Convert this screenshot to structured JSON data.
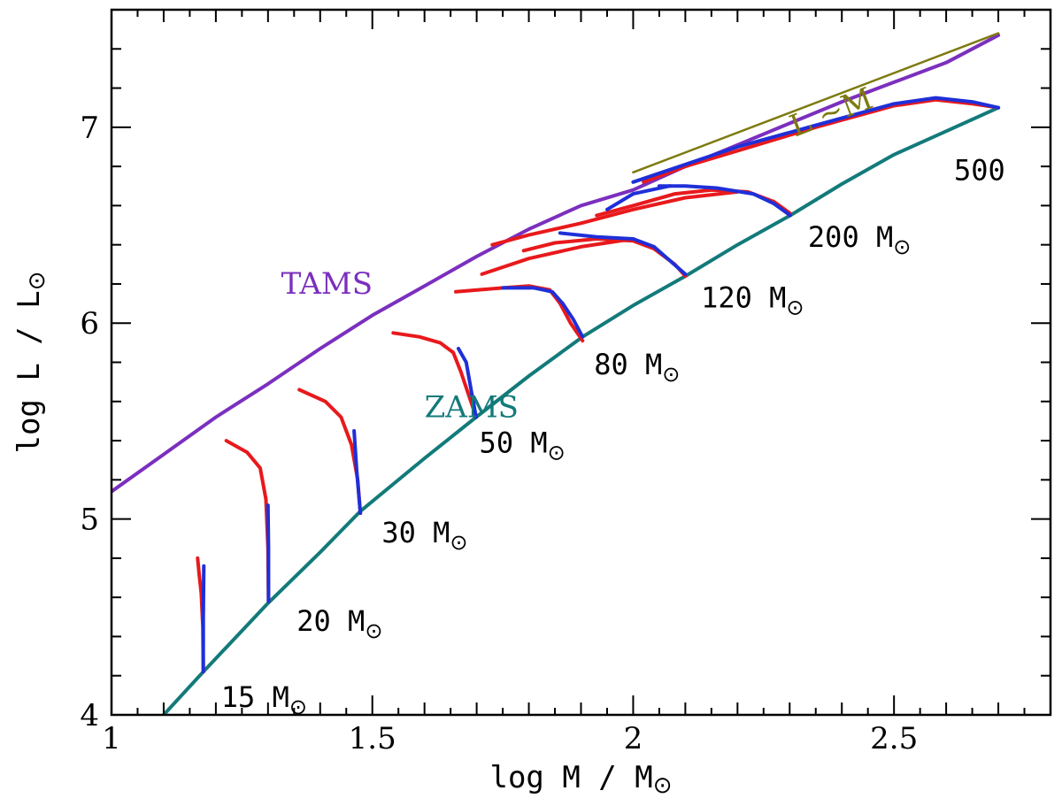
{
  "chart_data": {
    "type": "line",
    "title": "",
    "xlabel": {
      "text": "log M / M",
      "sym": "⊙"
    },
    "ylabel": {
      "text": "log L / L",
      "sym": "⊙"
    },
    "xlim": [
      1.0,
      2.8
    ],
    "ylim": [
      4.0,
      7.6
    ],
    "xticks": [
      {
        "value": 1,
        "label": "1"
      },
      {
        "value": 1.5,
        "label": "1.5"
      },
      {
        "value": 2,
        "label": "2"
      },
      {
        "value": 2.5,
        "label": "2.5"
      }
    ],
    "yticks": [
      {
        "value": 4,
        "label": "4"
      },
      {
        "value": 5,
        "label": "5"
      },
      {
        "value": 6,
        "label": "6"
      },
      {
        "value": 7,
        "label": "7"
      }
    ],
    "colors": {
      "TAMS": "#7b2fbe",
      "ZAMS": "#137a7a",
      "LM": "#7d7a10",
      "red": "#e8191c",
      "blue": "#1f2fd8"
    },
    "series": [
      {
        "name": "TAMS",
        "color": "TAMS",
        "points": [
          [
            1.0,
            5.14
          ],
          [
            1.1,
            5.33
          ],
          [
            1.2,
            5.52
          ],
          [
            1.3,
            5.69
          ],
          [
            1.4,
            5.87
          ],
          [
            1.5,
            6.04
          ],
          [
            1.6,
            6.19
          ],
          [
            1.7,
            6.34
          ],
          [
            1.8,
            6.48
          ],
          [
            1.9,
            6.6
          ],
          [
            2.0,
            6.68
          ],
          [
            2.1,
            6.8
          ],
          [
            2.2,
            6.91
          ],
          [
            2.3,
            7.02
          ],
          [
            2.4,
            7.13
          ],
          [
            2.5,
            7.23
          ],
          [
            2.6,
            7.33
          ],
          [
            2.7,
            7.47
          ]
        ]
      },
      {
        "name": "ZAMS",
        "color": "ZAMS",
        "points": [
          [
            1.1,
            4.0
          ],
          [
            1.176,
            4.22
          ],
          [
            1.3,
            4.57
          ],
          [
            1.4,
            4.83
          ],
          [
            1.477,
            5.04
          ],
          [
            1.6,
            5.31
          ],
          [
            1.699,
            5.52
          ],
          [
            1.8,
            5.73
          ],
          [
            1.903,
            5.93
          ],
          [
            2.0,
            6.09
          ],
          [
            2.1,
            6.24
          ],
          [
            2.2,
            6.4
          ],
          [
            2.301,
            6.55
          ],
          [
            2.4,
            6.71
          ],
          [
            2.5,
            6.86
          ],
          [
            2.6,
            6.98
          ],
          [
            2.7,
            7.1
          ]
        ]
      },
      {
        "name": "L ~M",
        "color": "LM",
        "points": [
          [
            2.0,
            6.77
          ],
          [
            2.7,
            7.48
          ]
        ]
      },
      {
        "name": "15 red",
        "color": "red",
        "points": [
          [
            1.176,
            4.22
          ],
          [
            1.175,
            4.45
          ],
          [
            1.172,
            4.62
          ],
          [
            1.168,
            4.72
          ],
          [
            1.165,
            4.8
          ]
        ]
      },
      {
        "name": "15 blue",
        "color": "blue",
        "points": [
          [
            1.176,
            4.22
          ],
          [
            1.176,
            4.5
          ],
          [
            1.177,
            4.76
          ]
        ]
      },
      {
        "name": "20 red",
        "color": "red",
        "points": [
          [
            1.301,
            4.58
          ],
          [
            1.3,
            4.85
          ],
          [
            1.296,
            5.1
          ],
          [
            1.285,
            5.26
          ],
          [
            1.26,
            5.34
          ],
          [
            1.22,
            5.4
          ]
        ]
      },
      {
        "name": "20 blue",
        "color": "blue",
        "points": [
          [
            1.301,
            4.58
          ],
          [
            1.301,
            4.85
          ],
          [
            1.3,
            5.07
          ]
        ]
      },
      {
        "name": "30 red",
        "color": "red",
        "points": [
          [
            1.477,
            5.03
          ],
          [
            1.472,
            5.2
          ],
          [
            1.46,
            5.38
          ],
          [
            1.44,
            5.52
          ],
          [
            1.41,
            5.6
          ],
          [
            1.36,
            5.66
          ]
        ]
      },
      {
        "name": "30 blue",
        "color": "blue",
        "points": [
          [
            1.477,
            5.03
          ],
          [
            1.47,
            5.25
          ],
          [
            1.465,
            5.45
          ]
        ]
      },
      {
        "name": "50 red",
        "color": "red",
        "points": [
          [
            1.699,
            5.52
          ],
          [
            1.685,
            5.63
          ],
          [
            1.67,
            5.75
          ],
          [
            1.655,
            5.85
          ],
          [
            1.63,
            5.9
          ],
          [
            1.59,
            5.93
          ],
          [
            1.54,
            5.95
          ]
        ]
      },
      {
        "name": "50 blue",
        "color": "blue",
        "points": [
          [
            1.699,
            5.52
          ],
          [
            1.69,
            5.65
          ],
          [
            1.68,
            5.8
          ],
          [
            1.665,
            5.87
          ]
        ]
      },
      {
        "name": "80 red",
        "color": "red",
        "points": [
          [
            1.903,
            5.91
          ],
          [
            1.88,
            6.0
          ],
          [
            1.86,
            6.1
          ],
          [
            1.84,
            6.17
          ],
          [
            1.8,
            6.19
          ],
          [
            1.75,
            6.18
          ],
          [
            1.66,
            6.16
          ]
        ]
      },
      {
        "name": "80 blue",
        "color": "blue",
        "points": [
          [
            1.903,
            5.93
          ],
          [
            1.885,
            6.02
          ],
          [
            1.865,
            6.1
          ],
          [
            1.845,
            6.16
          ],
          [
            1.81,
            6.18
          ],
          [
            1.75,
            6.18
          ]
        ]
      },
      {
        "name": "120 red a",
        "color": "red",
        "points": [
          [
            2.1,
            6.24
          ],
          [
            2.08,
            6.3
          ],
          [
            2.04,
            6.38
          ],
          [
            2.0,
            6.42
          ],
          [
            1.93,
            6.43
          ],
          [
            1.85,
            6.41
          ],
          [
            1.79,
            6.37
          ]
        ]
      },
      {
        "name": "120 red b",
        "color": "red",
        "points": [
          [
            2.0,
            6.43
          ],
          [
            1.9,
            6.39
          ],
          [
            1.8,
            6.33
          ],
          [
            1.71,
            6.25
          ]
        ]
      },
      {
        "name": "120 blue",
        "color": "blue",
        "points": [
          [
            2.1,
            6.25
          ],
          [
            2.07,
            6.32
          ],
          [
            2.04,
            6.39
          ],
          [
            2.0,
            6.43
          ],
          [
            1.93,
            6.44
          ],
          [
            1.86,
            6.46
          ]
        ]
      },
      {
        "name": "200 red a",
        "color": "red",
        "points": [
          [
            2.301,
            6.56
          ],
          [
            2.27,
            6.62
          ],
          [
            2.22,
            6.67
          ],
          [
            2.15,
            6.68
          ],
          [
            2.08,
            6.66
          ],
          [
            2.0,
            6.6
          ],
          [
            1.93,
            6.55
          ]
        ]
      },
      {
        "name": "200 red b",
        "color": "red",
        "points": [
          [
            2.2,
            6.67
          ],
          [
            2.1,
            6.64
          ],
          [
            2.0,
            6.58
          ],
          [
            1.9,
            6.51
          ],
          [
            1.8,
            6.45
          ],
          [
            1.73,
            6.4
          ]
        ]
      },
      {
        "name": "200 blue a",
        "color": "blue",
        "points": [
          [
            2.301,
            6.55
          ],
          [
            2.27,
            6.61
          ],
          [
            2.23,
            6.66
          ],
          [
            2.16,
            6.69
          ],
          [
            2.1,
            6.7
          ],
          [
            2.05,
            6.7
          ]
        ]
      },
      {
        "name": "200 blue b",
        "color": "blue",
        "points": [
          [
            2.07,
            6.7
          ],
          [
            2.0,
            6.66
          ],
          [
            1.95,
            6.58
          ]
        ]
      },
      {
        "name": "500 red",
        "color": "red",
        "points": [
          [
            2.7,
            7.1
          ],
          [
            2.65,
            7.12
          ],
          [
            2.58,
            7.14
          ],
          [
            2.5,
            7.11
          ],
          [
            2.35,
            7.0
          ],
          [
            2.2,
            6.88
          ],
          [
            2.1,
            6.8
          ],
          [
            2.02,
            6.72
          ]
        ]
      },
      {
        "name": "500 blue",
        "color": "blue",
        "points": [
          [
            2.7,
            7.1
          ],
          [
            2.65,
            7.13
          ],
          [
            2.58,
            7.15
          ],
          [
            2.5,
            7.12
          ],
          [
            2.35,
            7.01
          ],
          [
            2.2,
            6.9
          ],
          [
            2.1,
            6.81
          ],
          [
            2.0,
            6.72
          ]
        ]
      }
    ],
    "curve_labels": [
      {
        "id": "tams",
        "text": "TAMS",
        "color": "TAMS",
        "x": 1.325,
        "y": 6.15
      },
      {
        "id": "zams",
        "text": "ZAMS",
        "color": "ZAMS",
        "x": 1.6,
        "y": 5.52
      },
      {
        "id": "lm",
        "text": "L ~M",
        "color": "LM",
        "x": 2.31,
        "y": 6.95
      }
    ],
    "mass_labels": [
      {
        "text": "15 M",
        "sym": "⊙",
        "x": 1.21,
        "y": 4.04
      },
      {
        "text": "20 M",
        "sym": "⊙",
        "x": 1.355,
        "y": 4.43
      },
      {
        "text": "30 M",
        "sym": "⊙",
        "x": 1.518,
        "y": 4.88
      },
      {
        "text": "50 M",
        "sym": "⊙",
        "x": 1.705,
        "y": 5.34
      },
      {
        "text": "80 M",
        "sym": "⊙",
        "x": 1.925,
        "y": 5.74
      },
      {
        "text": "120 M",
        "sym": "⊙",
        "x": 2.13,
        "y": 6.08
      },
      {
        "text": "200 M",
        "sym": "⊙",
        "x": 2.335,
        "y": 6.39
      },
      {
        "text": "500",
        "sym": "",
        "x": 2.615,
        "y": 6.73
      }
    ]
  }
}
